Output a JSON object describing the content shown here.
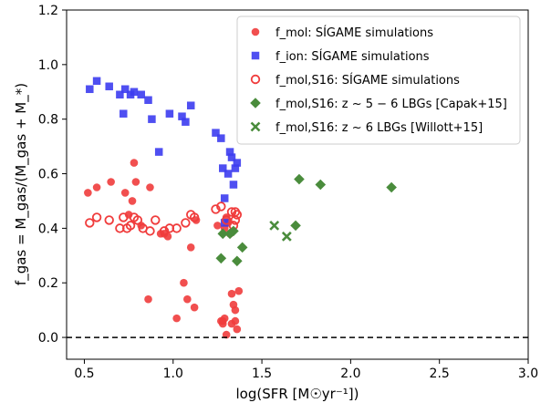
{
  "chart_data": {
    "type": "scatter",
    "xlabel": "log(SFR [M☉yr⁻¹])",
    "ylabel": "f_gas = M_gas/(M_gas + M_*)",
    "xlim": [
      0.4,
      3.0
    ],
    "ylim": [
      -0.08,
      1.2
    ],
    "x_ticks": [
      "0.5",
      "1.0",
      "1.5",
      "2.0",
      "2.5",
      "3.0"
    ],
    "y_ticks": [
      "0.0",
      "0.2",
      "0.4",
      "0.6",
      "0.8",
      "1.0",
      "1.2"
    ],
    "x_tick_values": [
      0.5,
      1.0,
      1.5,
      2.0,
      2.5,
      3.0
    ],
    "y_tick_values": [
      0.0,
      0.2,
      0.4,
      0.6,
      0.8,
      1.0,
      1.2
    ],
    "reference_line": {
      "y": 0.0,
      "style": "dashed",
      "color": "#000000"
    },
    "legend_position": "top-right",
    "legend": [
      {
        "label": "f_mol: SÍGAME simulations",
        "marker": "circle-filled",
        "color": "#f03c3c"
      },
      {
        "label": "f_ion: SÍGAME simulations",
        "marker": "square",
        "color": "#3c3cf0"
      },
      {
        "label": "f_mol,S16: SÍGAME simulations",
        "marker": "circle-open",
        "color": "#f03c3c"
      },
      {
        "label": "f_mol,S16: z ~ 5 − 6 LBGs [Capak+15]",
        "marker": "diamond",
        "color": "#4a8c3c"
      },
      {
        "label": "f_mol,S16: z ~ 6 LBGs [Willott+15]",
        "marker": "x",
        "color": "#4a8c3c"
      }
    ],
    "series": [
      {
        "name": "f_mol: SÍGAME simulations",
        "marker": "circle-filled",
        "color": "#f03c3c",
        "x": [
          0.52,
          0.57,
          0.65,
          0.73,
          0.75,
          0.78,
          0.77,
          0.79,
          0.82,
          0.87,
          0.93,
          0.95,
          0.97,
          0.86,
          1.02,
          1.06,
          1.08,
          1.1,
          1.12,
          1.13,
          1.25,
          1.27,
          1.28,
          1.28,
          1.29,
          1.3,
          1.31,
          1.32,
          1.33,
          1.34,
          1.35,
          1.35,
          1.36,
          1.37,
          1.3,
          1.33,
          1.29
        ],
        "y": [
          0.53,
          0.55,
          0.57,
          0.53,
          0.45,
          0.64,
          0.5,
          0.57,
          0.41,
          0.55,
          0.38,
          0.38,
          0.37,
          0.14,
          0.07,
          0.2,
          0.14,
          0.33,
          0.11,
          0.43,
          0.41,
          0.06,
          0.06,
          0.05,
          0.4,
          0.44,
          0.42,
          0.38,
          0.16,
          0.12,
          0.1,
          0.06,
          0.03,
          0.17,
          0.01,
          0.05,
          0.07
        ]
      },
      {
        "name": "f_ion: SÍGAME simulations",
        "marker": "square",
        "color": "#3c3cf0",
        "x": [
          0.53,
          0.57,
          0.64,
          0.7,
          0.73,
          0.72,
          0.76,
          0.78,
          0.82,
          0.86,
          0.88,
          0.92,
          0.98,
          1.05,
          1.07,
          1.1,
          1.24,
          1.27,
          1.28,
          1.29,
          1.31,
          1.32,
          1.33,
          1.35,
          1.36,
          1.34,
          1.29
        ],
        "y": [
          0.91,
          0.94,
          0.92,
          0.89,
          0.91,
          0.82,
          0.89,
          0.9,
          0.89,
          0.87,
          0.8,
          0.68,
          0.82,
          0.81,
          0.79,
          0.85,
          0.75,
          0.73,
          0.62,
          0.51,
          0.6,
          0.68,
          0.66,
          0.62,
          0.64,
          0.56,
          0.42
        ]
      },
      {
        "name": "f_mol,S16: SÍGAME simulations",
        "marker": "circle-open",
        "color": "#f03c3c",
        "x": [
          0.53,
          0.57,
          0.64,
          0.7,
          0.72,
          0.74,
          0.76,
          0.78,
          0.8,
          0.83,
          0.87,
          0.9,
          0.95,
          0.98,
          1.02,
          1.07,
          1.1,
          1.12,
          1.24,
          1.27,
          1.3,
          1.33,
          1.35,
          1.34,
          1.35,
          1.36
        ],
        "y": [
          0.42,
          0.44,
          0.43,
          0.4,
          0.44,
          0.4,
          0.41,
          0.44,
          0.43,
          0.4,
          0.39,
          0.43,
          0.39,
          0.4,
          0.4,
          0.42,
          0.45,
          0.44,
          0.47,
          0.48,
          0.43,
          0.46,
          0.46,
          0.41,
          0.43,
          0.45
        ]
      },
      {
        "name": "f_mol,S16: z ~ 5 − 6 LBGs [Capak+15]",
        "marker": "diamond",
        "color": "#4a8c3c",
        "x": [
          1.28,
          1.32,
          1.34,
          1.36,
          1.39,
          1.71,
          1.83,
          2.23,
          1.69,
          1.27
        ],
        "y": [
          0.38,
          0.38,
          0.39,
          0.28,
          0.33,
          0.58,
          0.56,
          0.55,
          0.41,
          0.29
        ]
      },
      {
        "name": "f_mol,S16: z ~ 6 LBGs [Willott+15]",
        "marker": "x",
        "color": "#4a8c3c",
        "x": [
          1.57,
          1.64
        ],
        "y": [
          0.41,
          0.37
        ]
      }
    ]
  }
}
